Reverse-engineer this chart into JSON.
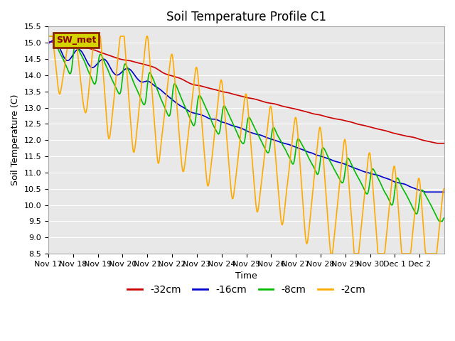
{
  "title": "Soil Temperature Profile C1",
  "xlabel": "Time",
  "ylabel": "Soil Temperature (C)",
  "ylim": [
    8.5,
    15.5
  ],
  "yticks": [
    8.5,
    9.0,
    9.5,
    10.0,
    10.5,
    11.0,
    11.5,
    12.0,
    12.5,
    13.0,
    13.5,
    14.0,
    14.5,
    15.0,
    15.5
  ],
  "bg_color": "#e8e8e8",
  "fig_color": "#ffffff",
  "grid_color": "#ffffff",
  "series": [
    {
      "label": "-32cm",
      "color": "#cc0000",
      "linewidth": 1.2
    },
    {
      "label": "-16cm",
      "color": "#0000cc",
      "linewidth": 1.2
    },
    {
      "label": "-8cm",
      "color": "#00bb00",
      "linewidth": 1.2
    },
    {
      "label": "-2cm",
      "color": "#ffaa00",
      "linewidth": 1.2
    }
  ],
  "annotation_text": "SW_met",
  "annotation_bg": "#d4d400",
  "annotation_border": "#8B2500",
  "x_tick_labels": [
    "Nov 17",
    "Nov 18",
    "Nov 19",
    "Nov 20",
    "Nov 21",
    "Nov 22",
    "Nov 23",
    "Nov 24",
    "Nov 25",
    "Nov 26",
    "Nov 27",
    "Nov 28",
    "Nov 29",
    "Nov 30",
    "Dec 1",
    "Dec 2"
  ],
  "title_fontsize": 12,
  "axis_fontsize": 9,
  "tick_fontsize": 8,
  "legend_fontsize": 10
}
